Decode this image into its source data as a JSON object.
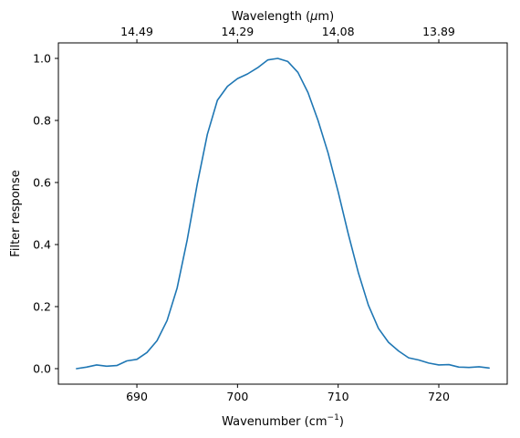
{
  "chart_data": {
    "type": "line",
    "title": "",
    "xlabel": "Wavenumber (cm",
    "xlabel_sup": "−1",
    "xlabel_close": ")",
    "ylabel": "Filter response",
    "top_xlabel_prefix": "Wavelength (",
    "top_xlabel_mu": "μ",
    "top_xlabel_suffix": "m)",
    "xlim": [
      682.2,
      726.8
    ],
    "ylim": [
      -0.05,
      1.05
    ],
    "grid": false,
    "x_ticks": [
      690,
      700,
      710,
      720
    ],
    "y_ticks": [
      0.0,
      0.2,
      0.4,
      0.6,
      0.8,
      1.0
    ],
    "y_tick_labels": [
      "0.0",
      "0.2",
      "0.4",
      "0.6",
      "0.8",
      "1.0"
    ],
    "top_ticks": [
      {
        "x": 690,
        "label": "14.49"
      },
      {
        "x": 700,
        "label": "14.29"
      },
      {
        "x": 710,
        "label": "14.08"
      },
      {
        "x": 720,
        "label": "13.89"
      }
    ],
    "series": [
      {
        "color": "#1f77b4",
        "x": [
          684,
          685,
          686,
          687,
          688,
          689,
          690,
          691,
          692,
          693,
          694,
          695,
          696,
          697,
          698,
          699,
          700,
          701,
          702,
          703,
          704,
          705,
          706,
          707,
          708,
          709,
          710,
          711,
          712,
          713,
          714,
          715,
          716,
          717,
          718,
          719,
          720,
          721,
          722,
          723,
          724,
          725
        ],
        "y": [
          0.0,
          0.005,
          0.012,
          0.008,
          0.01,
          0.025,
          0.03,
          0.052,
          0.09,
          0.155,
          0.26,
          0.415,
          0.595,
          0.755,
          0.865,
          0.91,
          0.935,
          0.95,
          0.97,
          0.995,
          1.0,
          0.99,
          0.955,
          0.89,
          0.8,
          0.695,
          0.57,
          0.435,
          0.31,
          0.205,
          0.13,
          0.085,
          0.057,
          0.035,
          0.028,
          0.018,
          0.012,
          0.013,
          0.005,
          0.004,
          0.006,
          0.002
        ]
      }
    ]
  }
}
